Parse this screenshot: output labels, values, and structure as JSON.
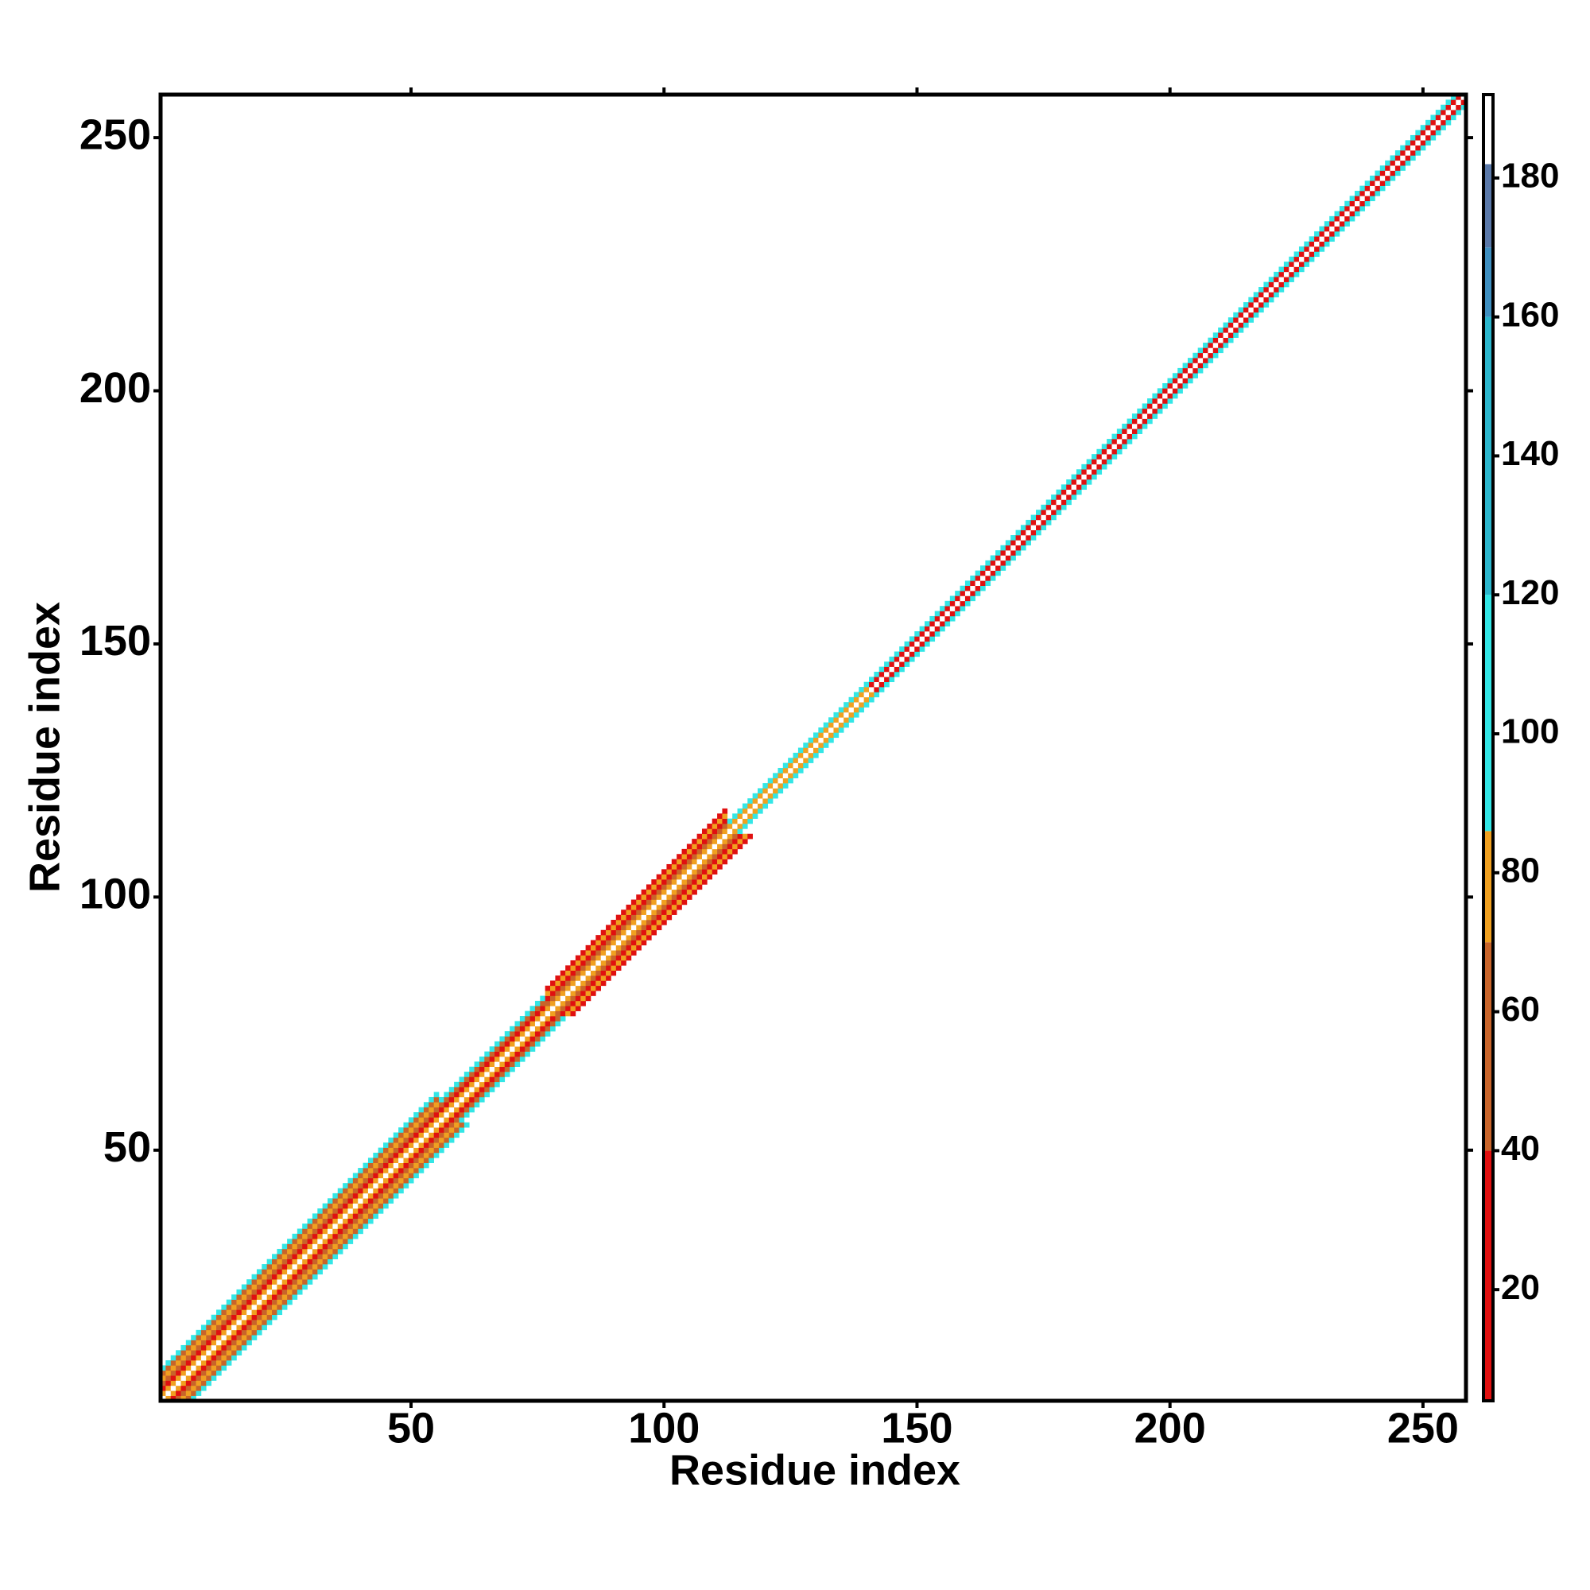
{
  "chart_data": {
    "type": "contact-map",
    "x_label": "Residue index",
    "y_label": "Residue index",
    "xlim": [
      0.5,
      258.5
    ],
    "ylim": [
      0.5,
      258.5
    ],
    "xticks": [
      50,
      100,
      150,
      200,
      250
    ],
    "yticks": [
      50,
      100,
      150,
      200,
      250
    ],
    "bands": [
      {
        "start": 1,
        "end": 55,
        "values": [
          190,
          70,
          20,
          60,
          75,
          60,
          100
        ]
      },
      {
        "start": 56,
        "end": 76,
        "values": [
          190,
          70,
          20,
          60,
          100
        ]
      },
      {
        "start": 77,
        "end": 112,
        "values": [
          190,
          70,
          60,
          20,
          75,
          20
        ]
      },
      {
        "start": 113,
        "end": 140,
        "values": [
          190,
          75,
          100
        ]
      },
      {
        "start": 141,
        "end": 258,
        "values": [
          190,
          20,
          100
        ]
      }
    ],
    "colorbar_lim": [
      4,
      192
    ],
    "colorbar_ticks": [
      20,
      40,
      60,
      80,
      100,
      120,
      140,
      160,
      180
    ],
    "colormap": [
      [
        4,
        "#e01010"
      ],
      [
        40,
        "#c8642a"
      ],
      [
        70,
        "#f0a020"
      ],
      [
        86,
        "#33e6e6"
      ],
      [
        120,
        "#2bb5cc"
      ],
      [
        160,
        "#3f8fc0"
      ],
      [
        170,
        "#5a78a8"
      ],
      [
        182,
        "#ffffff"
      ]
    ]
  }
}
